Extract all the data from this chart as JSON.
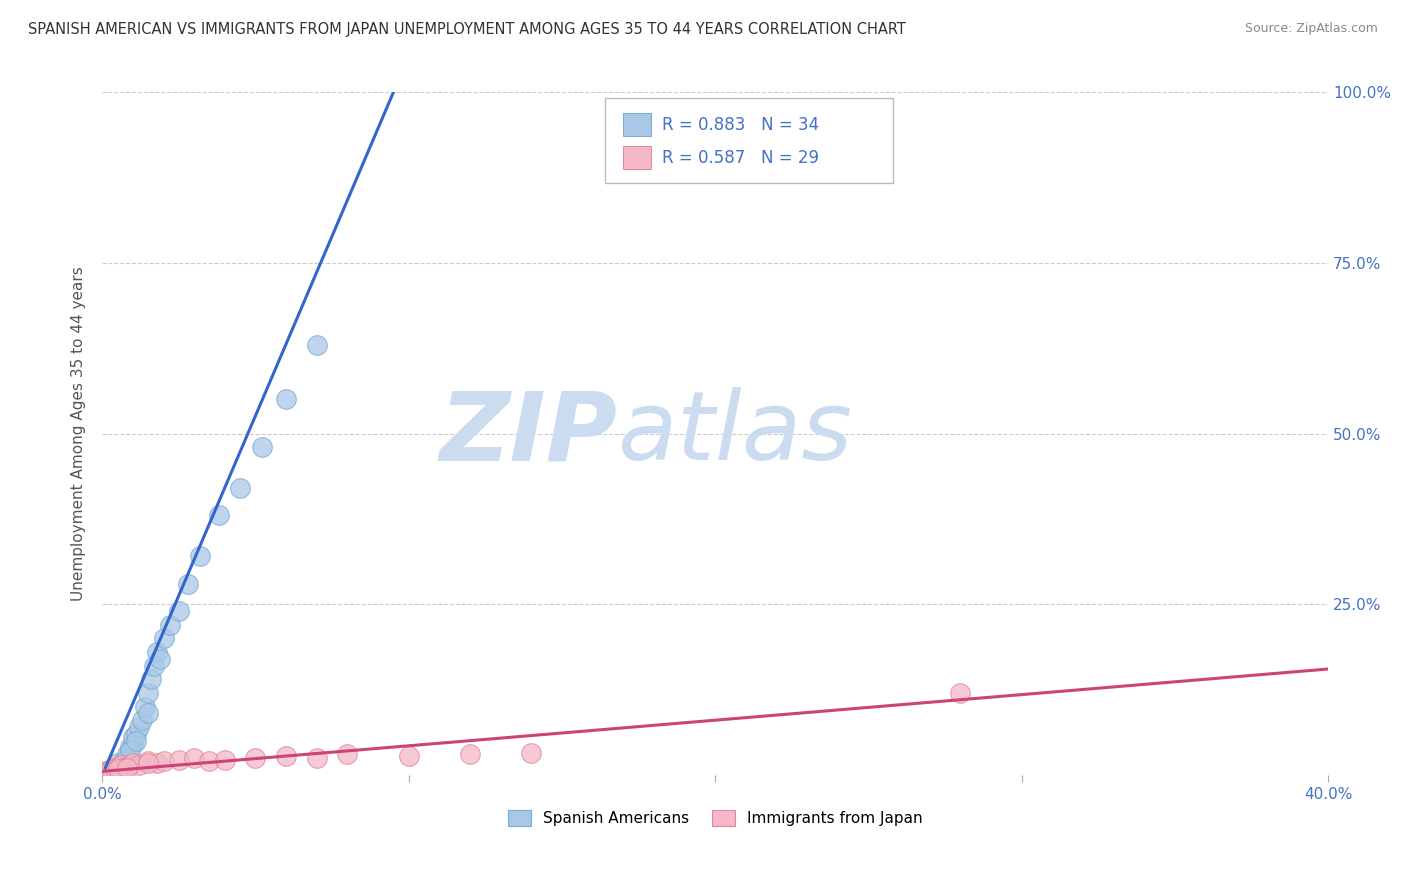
{
  "title": "SPANISH AMERICAN VS IMMIGRANTS FROM JAPAN UNEMPLOYMENT AMONG AGES 35 TO 44 YEARS CORRELATION CHART",
  "source": "Source: ZipAtlas.com",
  "ylabel": "Unemployment Among Ages 35 to 44 years",
  "xlabel": "",
  "xlim": [
    0.0,
    0.4
  ],
  "ylim": [
    0.0,
    1.0
  ],
  "xticks": [
    0.0,
    0.1,
    0.2,
    0.3,
    0.4
  ],
  "xticklabels": [
    "0.0%",
    "",
    "",
    "",
    "40.0%"
  ],
  "yticks": [
    0.0,
    0.25,
    0.5,
    0.75,
    1.0
  ],
  "yticklabels": [
    "",
    "25.0%",
    "50.0%",
    "75.0%",
    "100.0%"
  ],
  "watermark_zip": "ZIP",
  "watermark_atlas": "atlas",
  "legend_r1": "R = 0.883",
  "legend_n1": "N = 34",
  "legend_r2": "R = 0.587",
  "legend_n2": "N = 29",
  "blue_color": "#a8c8e8",
  "blue_edge_color": "#7aaace",
  "blue_line_color": "#3366cc",
  "pink_color": "#f4b8c8",
  "pink_edge_color": "#e08898",
  "pink_line_color": "#cc4477",
  "blue_scatter_x": [
    0.002,
    0.003,
    0.004,
    0.005,
    0.005,
    0.006,
    0.007,
    0.008,
    0.008,
    0.009,
    0.01,
    0.01,
    0.011,
    0.012,
    0.013,
    0.014,
    0.015,
    0.016,
    0.017,
    0.018,
    0.02,
    0.022,
    0.025,
    0.028,
    0.032,
    0.038,
    0.045,
    0.052,
    0.06,
    0.07,
    0.009,
    0.011,
    0.015,
    0.019
  ],
  "blue_scatter_y": [
    0.005,
    0.008,
    0.01,
    0.012,
    0.018,
    0.015,
    0.02,
    0.025,
    0.03,
    0.04,
    0.045,
    0.055,
    0.06,
    0.07,
    0.08,
    0.1,
    0.12,
    0.14,
    0.16,
    0.18,
    0.2,
    0.22,
    0.24,
    0.28,
    0.32,
    0.38,
    0.42,
    0.48,
    0.55,
    0.63,
    0.035,
    0.05,
    0.09,
    0.17
  ],
  "blue_line_x0": 0.001,
  "blue_line_y0": 0.01,
  "blue_line_x1": 0.095,
  "blue_line_y1": 1.0,
  "pink_scatter_x": [
    0.001,
    0.002,
    0.003,
    0.004,
    0.005,
    0.006,
    0.007,
    0.008,
    0.009,
    0.01,
    0.012,
    0.015,
    0.018,
    0.02,
    0.025,
    0.03,
    0.035,
    0.04,
    0.05,
    0.06,
    0.07,
    0.08,
    0.1,
    0.12,
    0.14,
    0.005,
    0.008,
    0.015,
    0.28
  ],
  "pink_scatter_y": [
    0.005,
    0.006,
    0.008,
    0.01,
    0.012,
    0.015,
    0.01,
    0.012,
    0.015,
    0.018,
    0.015,
    0.02,
    0.018,
    0.02,
    0.022,
    0.025,
    0.02,
    0.022,
    0.025,
    0.028,
    0.025,
    0.03,
    0.028,
    0.03,
    0.032,
    0.008,
    0.01,
    0.018,
    0.12
  ],
  "pink_line_x0": 0.0,
  "pink_line_y0": 0.005,
  "pink_line_x1": 0.4,
  "pink_line_y1": 0.155,
  "background_color": "#ffffff",
  "grid_color": "#cccccc",
  "title_color": "#333333",
  "axis_label_color": "#555555",
  "tick_color": "#4472c4"
}
